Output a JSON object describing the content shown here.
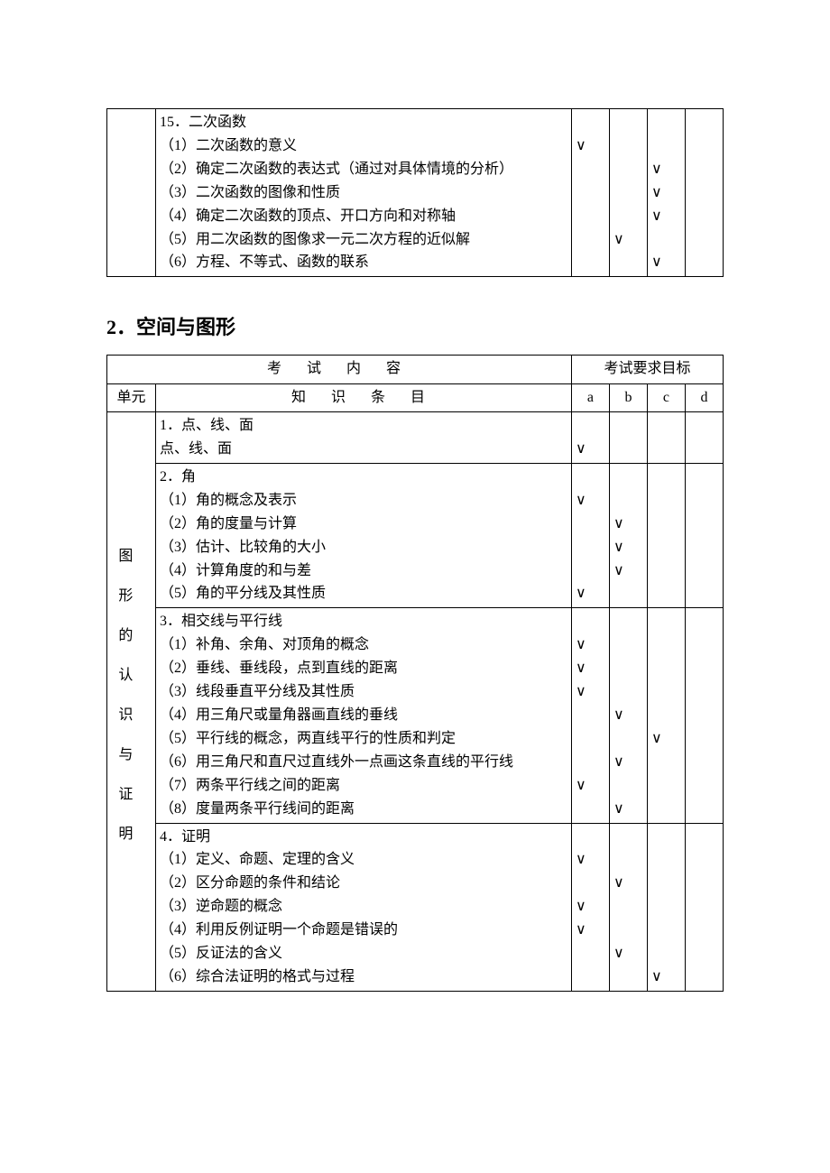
{
  "table1": {
    "unit_blank": "",
    "row": {
      "lines": [
        "15．二次函数",
        "（1）二次函数的意义",
        "（2）确定二次函数的表达式（通过对具体情境的分析）",
        "（3）二次函数的图像和性质",
        "（4）确定二次函数的顶点、开口方向和对称轴",
        "（5）用二次函数的图像求一元二次方程的近似解",
        "（6）方程、不等式、函数的联系"
      ],
      "marks": {
        "a": [
          "",
          "∨",
          "",
          "",
          "",
          "",
          ""
        ],
        "b": [
          "",
          "",
          "",
          "",
          "",
          "∨",
          ""
        ],
        "c": [
          "",
          "",
          "∨",
          "∨",
          "∨",
          "",
          "∨"
        ],
        "d": [
          "",
          "",
          "",
          "",
          "",
          "",
          ""
        ]
      }
    }
  },
  "section2_title": "2．空间与图形",
  "table2": {
    "header": {
      "exam_content": "考 试 内 容",
      "exam_target": "考试要求目标",
      "unit": "单元",
      "knowledge": "知 识 条 目",
      "a": "a",
      "b": "b",
      "c": "c",
      "d": "d"
    },
    "unit_label": "图形的认识与证明",
    "groups": [
      {
        "lines": [
          "1．点、线、面",
          "点、线、面"
        ],
        "marks": {
          "a": [
            "",
            "∨"
          ],
          "b": [
            "",
            ""
          ],
          "c": [
            "",
            ""
          ],
          "d": [
            "",
            ""
          ]
        }
      },
      {
        "lines": [
          "2．角",
          "（1）角的概念及表示",
          "（2）角的度量与计算",
          "（3）估计、比较角的大小",
          "（4）计算角度的和与差",
          "（5）角的平分线及其性质"
        ],
        "marks": {
          "a": [
            "",
            "∨",
            "",
            "",
            "",
            "∨"
          ],
          "b": [
            "",
            "",
            "∨",
            "∨",
            "∨",
            ""
          ],
          "c": [
            "",
            "",
            "",
            "",
            "",
            ""
          ],
          "d": [
            "",
            "",
            "",
            "",
            "",
            ""
          ]
        }
      },
      {
        "lines": [
          "3．相交线与平行线",
          "（1）补角、余角、对顶角的概念",
          "（2）垂线、垂线段，点到直线的距离",
          "（3）线段垂直平分线及其性质",
          "（4）用三角尺或量角器画直线的垂线",
          "（5）平行线的概念，两直线平行的性质和判定",
          "（6）用三角尺和直尺过直线外一点画这条直线的平行线",
          "（7）两条平行线之间的距离",
          "（8）度量两条平行线间的距离"
        ],
        "marks": {
          "a": [
            "",
            "∨",
            "∨",
            "∨",
            "",
            "",
            "",
            "∨",
            ""
          ],
          "b": [
            "",
            "",
            "",
            "",
            "∨",
            "",
            "∨",
            "",
            "∨"
          ],
          "c": [
            "",
            "",
            "",
            "",
            "",
            "∨",
            "",
            "",
            ""
          ],
          "d": [
            "",
            "",
            "",
            "",
            "",
            "",
            "",
            "",
            ""
          ]
        }
      },
      {
        "lines": [
          "4．证明",
          "（1）定义、命题、定理的含义",
          "（2）区分命题的条件和结论",
          "（3）逆命题的概念",
          "（4）利用反例证明一个命题是错误的",
          "（5）反证法的含义",
          "（6）综合法证明的格式与过程"
        ],
        "marks": {
          "a": [
            "",
            "∨",
            "",
            "∨",
            "∨",
            "",
            ""
          ],
          "b": [
            "",
            "",
            "∨",
            "",
            "",
            "∨",
            ""
          ],
          "c": [
            "",
            "",
            "",
            "",
            "",
            "",
            "∨"
          ],
          "d": [
            "",
            "",
            "",
            "",
            "",
            "",
            ""
          ]
        }
      }
    ]
  },
  "check": "∨"
}
